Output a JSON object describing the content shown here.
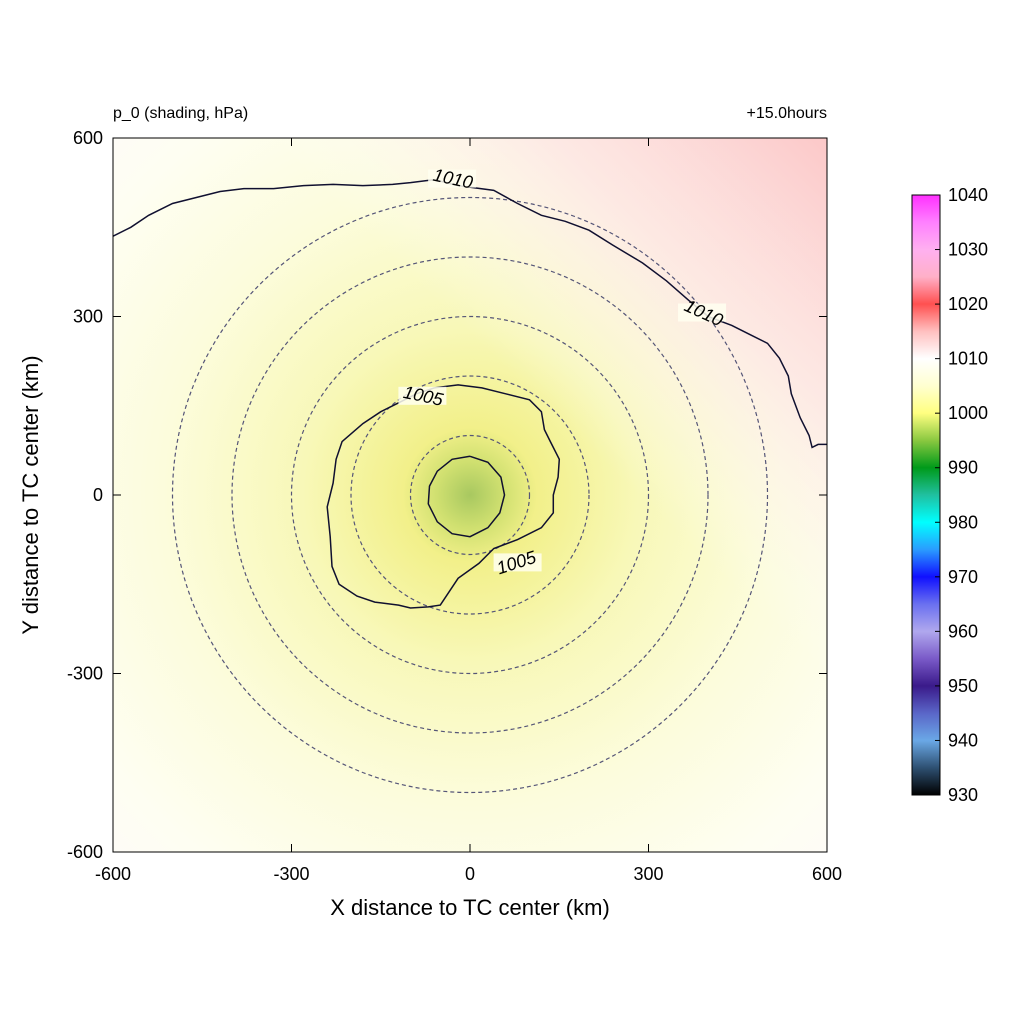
{
  "chart_data": {
    "type": "heatmap",
    "title": "p_0 (shading, hPa)",
    "subtitle": "+15.0hours",
    "xlabel": "X distance to TC center (km)",
    "ylabel": "Y distance to TC center (km)",
    "xlim": [
      -600,
      600
    ],
    "ylim": [
      -600,
      600
    ],
    "x_ticks": [
      -600,
      -300,
      0,
      300,
      600
    ],
    "y_ticks": [
      -600,
      -300,
      0,
      300,
      600
    ],
    "x_tick_labels": [
      "-600",
      "-300",
      "0",
      "300",
      "600"
    ],
    "y_tick_labels": [
      "-600",
      "-300",
      "0",
      "300",
      "600"
    ],
    "grid": false,
    "center_pressure_hpa": 998,
    "range_rings_km": [
      100,
      200,
      300,
      400,
      500
    ],
    "contours": [
      {
        "level": 1005,
        "label": "1005",
        "label_positions": [
          [
            -80,
            160
          ],
          [
            80,
            -120
          ]
        ],
        "points": [
          [
            -60,
            180
          ],
          [
            -20,
            185
          ],
          [
            20,
            180
          ],
          [
            60,
            170
          ],
          [
            100,
            160
          ],
          [
            120,
            140
          ],
          [
            125,
            110
          ],
          [
            135,
            90
          ],
          [
            150,
            60
          ],
          [
            148,
            30
          ],
          [
            140,
            0
          ],
          [
            140,
            -30
          ],
          [
            120,
            -55
          ],
          [
            80,
            -75
          ],
          [
            40,
            -90
          ],
          [
            15,
            -115
          ],
          [
            -20,
            -140
          ],
          [
            -50,
            -185
          ],
          [
            -70,
            -188
          ],
          [
            -100,
            -190
          ],
          [
            -120,
            -185
          ],
          [
            -160,
            -180
          ],
          [
            -190,
            -170
          ],
          [
            -220,
            -150
          ],
          [
            -232,
            -120
          ],
          [
            -235,
            -70
          ],
          [
            -240,
            -20
          ],
          [
            -230,
            20
          ],
          [
            -225,
            60
          ],
          [
            -215,
            90
          ],
          [
            -180,
            120
          ],
          [
            -150,
            140
          ],
          [
            -120,
            155
          ],
          [
            -90,
            170
          ],
          [
            -60,
            180
          ]
        ]
      },
      {
        "level": 1000,
        "label": "",
        "points": [
          [
            0,
            65
          ],
          [
            30,
            55
          ],
          [
            52,
            30
          ],
          [
            58,
            0
          ],
          [
            50,
            -30
          ],
          [
            30,
            -55
          ],
          [
            0,
            -70
          ],
          [
            -30,
            -65
          ],
          [
            -55,
            -45
          ],
          [
            -70,
            -15
          ],
          [
            -68,
            15
          ],
          [
            -55,
            40
          ],
          [
            -30,
            60
          ],
          [
            0,
            65
          ]
        ]
      },
      {
        "level": 1010,
        "label": "1010",
        "label_positions": [
          [
            -30,
            525
          ],
          [
            390,
            300
          ]
        ],
        "points": [
          [
            -600,
            435
          ],
          [
            -570,
            450
          ],
          [
            -540,
            470
          ],
          [
            -500,
            490
          ],
          [
            -460,
            500
          ],
          [
            -420,
            510
          ],
          [
            -380,
            515
          ],
          [
            -330,
            515
          ],
          [
            -280,
            520
          ],
          [
            -230,
            522
          ],
          [
            -180,
            520
          ],
          [
            -130,
            522
          ],
          [
            -100,
            525
          ],
          [
            -60,
            530
          ],
          [
            -20,
            520
          ],
          [
            40,
            512
          ],
          [
            80,
            490
          ],
          [
            120,
            470
          ],
          [
            160,
            460
          ],
          [
            200,
            445
          ],
          [
            240,
            420
          ],
          [
            290,
            390
          ],
          [
            330,
            360
          ],
          [
            370,
            325
          ],
          [
            400,
            300
          ],
          [
            440,
            285
          ],
          [
            470,
            270
          ],
          [
            500,
            255
          ],
          [
            520,
            230
          ],
          [
            535,
            200
          ],
          [
            540,
            170
          ],
          [
            555,
            130
          ],
          [
            570,
            100
          ],
          [
            575,
            80
          ],
          [
            585,
            85
          ],
          [
            600,
            85
          ]
        ]
      }
    ],
    "colorbar": {
      "min": 930,
      "max": 1040,
      "tick_values": [
        1040,
        1030,
        1020,
        1010,
        1000,
        990,
        980,
        970,
        960,
        950,
        940,
        930
      ],
      "tick_labels": [
        "1040",
        "1030",
        "1020",
        "1010",
        "1000",
        "990",
        "980",
        "970",
        "960",
        "950",
        "940",
        "930"
      ],
      "color_stops": [
        {
          "value": 930,
          "color": "#000000"
        },
        {
          "value": 935,
          "color": "#2e5072"
        },
        {
          "value": 940,
          "color": "#6aa8e6"
        },
        {
          "value": 945,
          "color": "#5a66c8"
        },
        {
          "value": 950,
          "color": "#3a1a8a"
        },
        {
          "value": 955,
          "color": "#7a5ac8"
        },
        {
          "value": 960,
          "color": "#b0a8ee"
        },
        {
          "value": 965,
          "color": "#6a70f0"
        },
        {
          "value": 970,
          "color": "#1010ff"
        },
        {
          "value": 975,
          "color": "#2a9cff"
        },
        {
          "value": 980,
          "color": "#00ffff"
        },
        {
          "value": 985,
          "color": "#20c0a0"
        },
        {
          "value": 990,
          "color": "#009a1a"
        },
        {
          "value": 995,
          "color": "#8ac840"
        },
        {
          "value": 1000,
          "color": "#ffff80"
        },
        {
          "value": 1005,
          "color": "#ffffd0"
        },
        {
          "value": 1010,
          "color": "#ffffff"
        },
        {
          "value": 1015,
          "color": "#ffc0c0"
        },
        {
          "value": 1020,
          "color": "#ff5050"
        },
        {
          "value": 1025,
          "color": "#ffb0c8"
        },
        {
          "value": 1030,
          "color": "#ffb0f0"
        },
        {
          "value": 1035,
          "color": "#ff80ff"
        },
        {
          "value": 1040,
          "color": "#ff30ff"
        }
      ]
    }
  },
  "colors": {
    "contour": "#101030",
    "range_ring": "#555577",
    "frame": "#000000"
  }
}
